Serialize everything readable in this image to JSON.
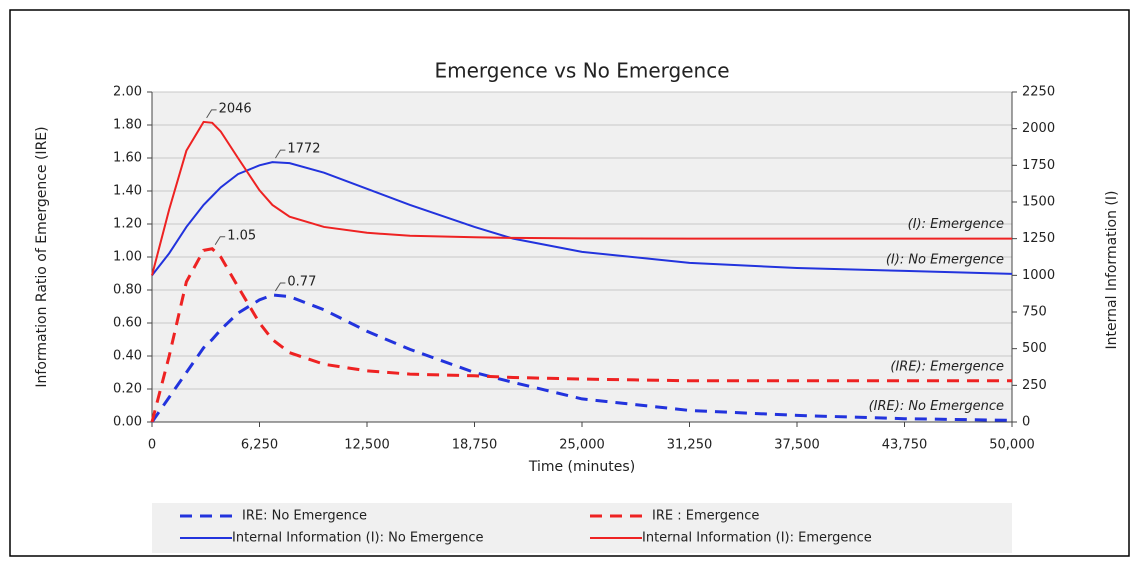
{
  "chart_data": {
    "type": "line",
    "title": "Emergence vs No Emergence",
    "x_label": "Time (minutes)",
    "y_label": "Information Ratio of Emergence (IRE)",
    "y2_label": "Internal Information (I)",
    "x": [
      0,
      1000,
      2000,
      3000,
      3500,
      4000,
      5000,
      6250,
      7000,
      8000,
      10000,
      12500,
      15000,
      18750,
      21000,
      25000,
      31250,
      37500,
      43750,
      50000
    ],
    "xlim": [
      0,
      50000
    ],
    "xticks": [
      0,
      {
        "value": 6250,
        "label": "6,250"
      },
      {
        "value": 12500,
        "label": "12,500"
      },
      {
        "value": 18750,
        "label": "18,750"
      },
      {
        "value": 25000,
        "label": "25,000"
      },
      {
        "value": 31250,
        "label": "31,250"
      },
      {
        "value": 37500,
        "label": "37,500"
      },
      {
        "value": 43750,
        "label": "43,750"
      },
      {
        "value": 50000,
        "label": "50,000"
      }
    ],
    "ylim": [
      0,
      2
    ],
    "yticks": [
      {
        "value": 0,
        "label": "0.00"
      },
      {
        "value": 0.2,
        "label": "0.20"
      },
      {
        "value": 0.4,
        "label": "0.40"
      },
      {
        "value": 0.6,
        "label": "0.60"
      },
      {
        "value": 0.8,
        "label": "0.80"
      },
      {
        "value": 1,
        "label": "1.00"
      },
      {
        "value": 1.2,
        "label": "1.20"
      },
      {
        "value": 1.4,
        "label": "1.40"
      },
      {
        "value": 1.6,
        "label": "1.60"
      },
      {
        "value": 1.8,
        "label": "1.80"
      },
      {
        "value": 2,
        "label": "2.00"
      }
    ],
    "y2lim": [
      0,
      2250
    ],
    "y2ticks": [
      0,
      250,
      500,
      750,
      1000,
      1250,
      1500,
      1750,
      2000,
      2250
    ],
    "grid": true,
    "series": [
      {
        "name": "IRE: No Emergence",
        "color": "#2233dd",
        "dash": true,
        "label": "(IRE): No Emergence",
        "values": [
          0,
          0.15,
          0.3,
          0.45,
          0.5,
          0.56,
          0.66,
          0.74,
          0.77,
          0.76,
          0.68,
          0.55,
          0.44,
          0.3,
          0.24,
          0.14,
          0.07,
          0.04,
          0.02,
          0.01
        ],
        "value_labels": [
          null,
          null,
          null,
          null,
          null,
          null,
          null,
          null,
          "0.77",
          null,
          null,
          null,
          null,
          null,
          null,
          null,
          null,
          null,
          null,
          null
        ]
      },
      {
        "name": "IRE : Emergence",
        "color": "#ee2222",
        "dash": true,
        "label": "(IRE): Emergence",
        "values": [
          0,
          0.4,
          0.85,
          1.04,
          1.05,
          1.0,
          0.82,
          0.6,
          0.5,
          0.42,
          0.35,
          0.31,
          0.29,
          0.28,
          0.27,
          0.26,
          0.25,
          0.25,
          0.25,
          0.25
        ],
        "value_labels": [
          null,
          null,
          null,
          null,
          "1.05",
          null,
          null,
          null,
          null,
          null,
          null,
          null,
          null,
          null,
          null,
          null,
          null,
          null,
          null,
          null
        ]
      },
      {
        "name": "Internal Information (I): No Emergence",
        "color": "#2233dd",
        "dash": false,
        "axis": "y2",
        "label": "(I): No Emergence",
        "values": [
          1000,
          1150,
          1330,
          1480,
          1540,
          1600,
          1690,
          1750,
          1772,
          1765,
          1700,
          1590,
          1480,
          1330,
          1250,
          1160,
          1085,
          1050,
          1030,
          1010
        ],
        "value_labels": [
          null,
          null,
          null,
          null,
          null,
          null,
          null,
          null,
          "1772",
          null,
          null,
          null,
          null,
          null,
          null,
          null,
          null,
          null,
          null,
          null
        ]
      },
      {
        "name": "Internal Information (I): Emergence",
        "color": "#ee2222",
        "dash": false,
        "axis": "y2",
        "label": "(I): Emergence",
        "values": [
          1000,
          1450,
          1850,
          2046,
          2040,
          1980,
          1800,
          1580,
          1480,
          1400,
          1330,
          1290,
          1270,
          1260,
          1255,
          1252,
          1250,
          1250,
          1250,
          1250
        ],
        "value_labels": [
          null,
          null,
          null,
          "2046",
          null,
          null,
          null,
          null,
          null,
          null,
          null,
          null,
          null,
          null,
          null,
          null,
          null,
          null,
          null,
          null
        ]
      }
    ]
  }
}
